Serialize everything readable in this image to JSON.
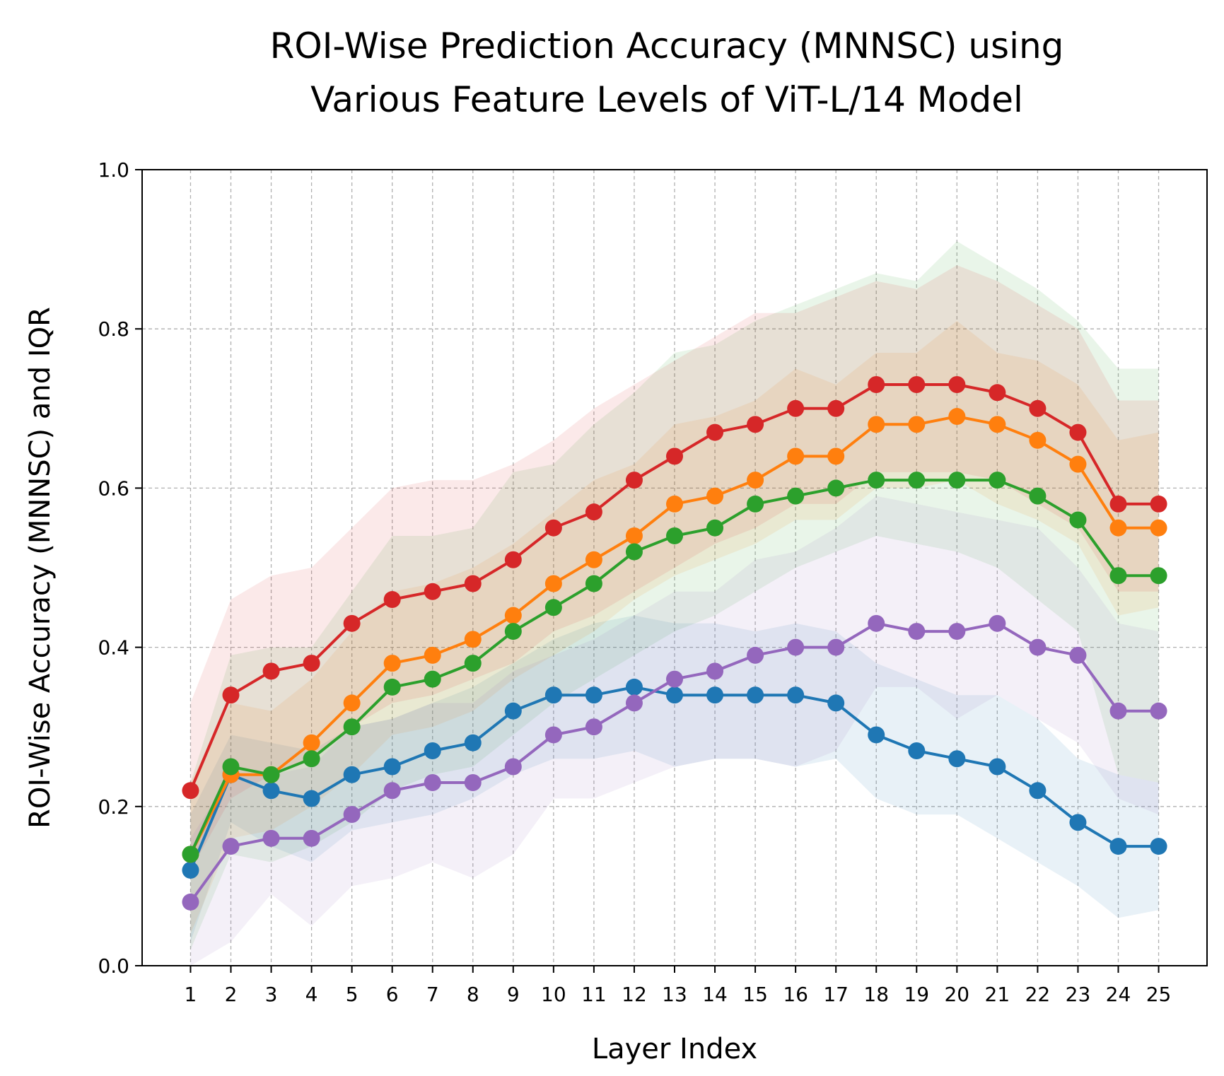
{
  "chart_data": {
    "type": "line",
    "title_lines": [
      "ROI-Wise Prediction Accuracy (MNNSC) using",
      "Various Feature Levels of ViT-L/14 Model"
    ],
    "xlabel": "Layer Index",
    "ylabel": "ROI-Wise Accuracy (MNNSC) and IQR",
    "x": [
      1,
      2,
      3,
      4,
      5,
      6,
      7,
      8,
      9,
      10,
      11,
      12,
      13,
      14,
      15,
      16,
      17,
      18,
      19,
      20,
      21,
      22,
      23,
      24,
      25
    ],
    "x_tick_labels": [
      "1",
      "2",
      "3",
      "4",
      "5",
      "6",
      "7",
      "8",
      "9",
      "10",
      "11",
      "12",
      "13",
      "14",
      "15",
      "16",
      "17",
      "18",
      "19",
      "20",
      "21",
      "22",
      "23",
      "24",
      "25"
    ],
    "xlim": [
      -0.2,
      26.2
    ],
    "ylim": [
      0.0,
      1.0
    ],
    "y_ticks": [
      0.0,
      0.2,
      0.4,
      0.6,
      0.8,
      1.0
    ],
    "y_tick_labels": [
      "0.0",
      "0.2",
      "0.4",
      "0.6",
      "0.8",
      "1.0"
    ],
    "grid": true,
    "legend": "none",
    "series": [
      {
        "color": "#1f77b4",
        "values": [
          0.12,
          0.24,
          0.22,
          0.21,
          0.24,
          0.25,
          0.27,
          0.28,
          0.32,
          0.34,
          0.34,
          0.35,
          0.34,
          0.34,
          0.34,
          0.34,
          0.33,
          0.29,
          0.27,
          0.26,
          0.25,
          0.22,
          0.18,
          0.15,
          0.15
        ],
        "iqr_low": [
          0.03,
          0.18,
          0.15,
          0.13,
          0.17,
          0.18,
          0.19,
          0.21,
          0.24,
          0.26,
          0.26,
          0.27,
          0.25,
          0.26,
          0.26,
          0.25,
          0.26,
          0.21,
          0.19,
          0.19,
          0.16,
          0.13,
          0.1,
          0.06,
          0.07
        ],
        "iqr_high": [
          0.19,
          0.29,
          0.28,
          0.27,
          0.3,
          0.31,
          0.33,
          0.35,
          0.38,
          0.41,
          0.43,
          0.44,
          0.43,
          0.43,
          0.42,
          0.43,
          0.42,
          0.38,
          0.36,
          0.34,
          0.34,
          0.31,
          0.26,
          0.24,
          0.23
        ]
      },
      {
        "color": "#ff7f0e",
        "values": [
          0.14,
          0.24,
          0.24,
          0.28,
          0.33,
          0.38,
          0.39,
          0.41,
          0.44,
          0.48,
          0.51,
          0.54,
          0.58,
          0.59,
          0.61,
          0.64,
          0.64,
          0.68,
          0.68,
          0.69,
          0.68,
          0.66,
          0.63,
          0.55,
          0.55
        ],
        "iqr_low": [
          0.04,
          0.16,
          0.17,
          0.2,
          0.24,
          0.29,
          0.3,
          0.32,
          0.36,
          0.39,
          0.42,
          0.46,
          0.49,
          0.51,
          0.53,
          0.56,
          0.56,
          0.6,
          0.6,
          0.61,
          0.58,
          0.56,
          0.53,
          0.44,
          0.45
        ],
        "iqr_high": [
          0.23,
          0.33,
          0.32,
          0.36,
          0.42,
          0.47,
          0.48,
          0.5,
          0.53,
          0.57,
          0.61,
          0.63,
          0.68,
          0.69,
          0.71,
          0.75,
          0.73,
          0.77,
          0.77,
          0.81,
          0.77,
          0.76,
          0.73,
          0.66,
          0.67
        ]
      },
      {
        "color": "#2ca02c",
        "values": [
          0.14,
          0.25,
          0.24,
          0.26,
          0.3,
          0.35,
          0.36,
          0.38,
          0.42,
          0.45,
          0.48,
          0.52,
          0.54,
          0.55,
          0.58,
          0.59,
          0.6,
          0.61,
          0.61,
          0.61,
          0.61,
          0.59,
          0.56,
          0.49,
          0.49
        ],
        "iqr_low": [
          0.02,
          0.14,
          0.13,
          0.15,
          0.18,
          0.22,
          0.24,
          0.25,
          0.29,
          0.33,
          0.36,
          0.39,
          0.42,
          0.44,
          0.47,
          0.5,
          0.52,
          0.54,
          0.53,
          0.52,
          0.5,
          0.46,
          0.42,
          0.24,
          0.23
        ],
        "iqr_high": [
          0.23,
          0.39,
          0.4,
          0.4,
          0.47,
          0.54,
          0.54,
          0.55,
          0.62,
          0.63,
          0.68,
          0.72,
          0.77,
          0.78,
          0.81,
          0.83,
          0.85,
          0.87,
          0.86,
          0.91,
          0.88,
          0.85,
          0.81,
          0.75,
          0.75
        ]
      },
      {
        "color": "#d62728",
        "values": [
          0.22,
          0.34,
          0.37,
          0.38,
          0.43,
          0.46,
          0.47,
          0.48,
          0.51,
          0.55,
          0.57,
          0.61,
          0.64,
          0.67,
          0.68,
          0.7,
          0.7,
          0.73,
          0.73,
          0.73,
          0.72,
          0.7,
          0.67,
          0.58,
          0.58
        ],
        "iqr_low": [
          0.12,
          0.21,
          0.24,
          0.26,
          0.3,
          0.33,
          0.34,
          0.36,
          0.38,
          0.42,
          0.44,
          0.47,
          0.5,
          0.53,
          0.55,
          0.58,
          0.58,
          0.62,
          0.62,
          0.62,
          0.61,
          0.58,
          0.55,
          0.47,
          0.47
        ],
        "iqr_high": [
          0.33,
          0.46,
          0.49,
          0.5,
          0.55,
          0.6,
          0.61,
          0.61,
          0.63,
          0.66,
          0.7,
          0.73,
          0.76,
          0.79,
          0.82,
          0.82,
          0.84,
          0.86,
          0.85,
          0.88,
          0.86,
          0.83,
          0.8,
          0.71,
          0.71
        ]
      },
      {
        "color": "#9467bd",
        "values": [
          0.08,
          0.15,
          0.16,
          0.16,
          0.19,
          0.22,
          0.23,
          0.23,
          0.25,
          0.29,
          0.3,
          0.33,
          0.36,
          0.37,
          0.39,
          0.4,
          0.4,
          0.43,
          0.42,
          0.42,
          0.43,
          0.4,
          0.39,
          0.32,
          0.32
        ],
        "iqr_low": [
          0.0,
          0.03,
          0.09,
          0.05,
          0.1,
          0.11,
          0.13,
          0.11,
          0.14,
          0.21,
          0.21,
          0.23,
          0.25,
          0.26,
          0.26,
          0.25,
          0.27,
          0.35,
          0.35,
          0.31,
          0.34,
          0.31,
          0.28,
          0.21,
          0.19
        ],
        "iqr_high": [
          0.16,
          0.24,
          0.24,
          0.25,
          0.3,
          0.31,
          0.33,
          0.33,
          0.37,
          0.39,
          0.41,
          0.44,
          0.47,
          0.47,
          0.51,
          0.52,
          0.55,
          0.59,
          0.58,
          0.57,
          0.56,
          0.55,
          0.5,
          0.43,
          0.42
        ]
      }
    ]
  }
}
